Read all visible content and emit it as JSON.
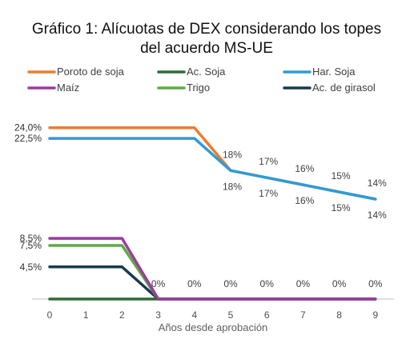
{
  "chart_data": {
    "type": "line",
    "title_lines": [
      "Gráfico 1: Alícuotas de DEX considerando los topes",
      "del acuerdo MS-UE"
    ],
    "xlabel": "Años desde aprobación",
    "ylabel": "",
    "x": [
      0,
      1,
      2,
      3,
      4,
      5,
      6,
      7,
      8,
      9
    ],
    "x_tick_labels": [
      "0",
      "1",
      "2",
      "3",
      "4",
      "5",
      "6",
      "7",
      "8",
      "9"
    ],
    "ylim": [
      0,
      27
    ],
    "grid": false,
    "legend_position": "top",
    "series": [
      {
        "name": "Poroto de soja",
        "color": "#ED7D31",
        "values": [
          24.0,
          24.0,
          24.0,
          24.0,
          24.0,
          18.0,
          17.0,
          16.0,
          15.0,
          14.0
        ]
      },
      {
        "name": "Ac. Soja",
        "color": "#2E6B35",
        "values": [
          0,
          0,
          0,
          0,
          0,
          0,
          0,
          0,
          0,
          0
        ]
      },
      {
        "name": "Har. Soja",
        "color": "#2E9BD6",
        "values": [
          22.5,
          22.5,
          22.5,
          22.5,
          22.5,
          18.0,
          17.0,
          16.0,
          15.0,
          14.0
        ]
      },
      {
        "name": "Maíz",
        "color": "#9B3B9E",
        "values": [
          8.5,
          8.5,
          8.5,
          0,
          0,
          0,
          0,
          0,
          0,
          0
        ]
      },
      {
        "name": "Trigo",
        "color": "#5DAA46",
        "values": [
          7.5,
          7.5,
          7.5,
          0,
          0,
          0,
          0,
          0,
          0,
          0
        ]
      },
      {
        "name": "Ac. de girasol",
        "color": "#163C4C",
        "values": [
          4.5,
          4.5,
          4.5,
          0,
          0,
          0,
          0,
          0,
          0,
          0
        ]
      }
    ],
    "y_value_labels": [
      {
        "text": "24,0%",
        "value": 24.0
      },
      {
        "text": "22,5%",
        "value": 22.5
      },
      {
        "text": "8,5%",
        "value": 8.5
      },
      {
        "text": "7,5%",
        "value": 7.5
      },
      {
        "text": "4,5%",
        "value": 4.5
      }
    ],
    "data_labels_upper": [
      {
        "x": 5,
        "text": "18%"
      },
      {
        "x": 6,
        "text": "17%"
      },
      {
        "x": 7,
        "text": "16%"
      },
      {
        "x": 8,
        "text": "15%"
      },
      {
        "x": 9,
        "text": "14%"
      }
    ],
    "data_labels_lower": [
      {
        "x": 5,
        "text": "18%"
      },
      {
        "x": 6,
        "text": "17%"
      },
      {
        "x": 7,
        "text": "16%"
      },
      {
        "x": 8,
        "text": "15%"
      },
      {
        "x": 9,
        "text": "14%"
      }
    ],
    "data_labels_zero": [
      {
        "x": 3,
        "text": "0%"
      },
      {
        "x": 4,
        "text": "0%"
      },
      {
        "x": 5,
        "text": "0%"
      },
      {
        "x": 6,
        "text": "0%"
      },
      {
        "x": 7,
        "text": "0%"
      },
      {
        "x": 8,
        "text": "0%"
      },
      {
        "x": 9,
        "text": "0%"
      }
    ]
  }
}
